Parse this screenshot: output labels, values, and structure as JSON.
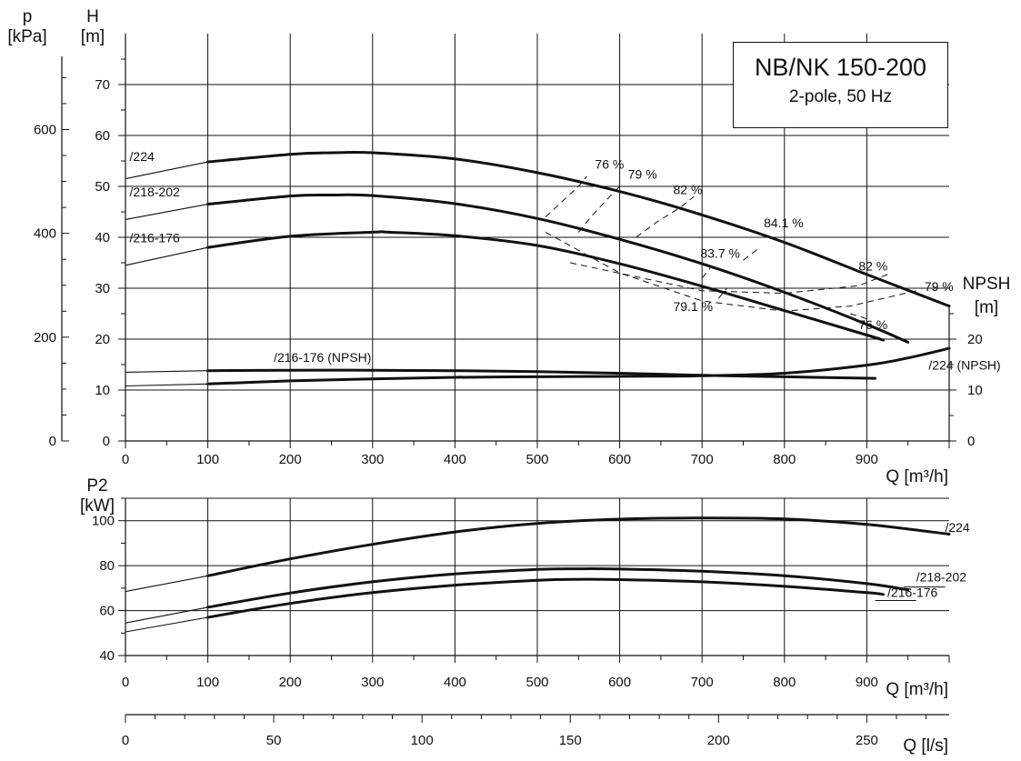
{
  "chart_data": [
    {
      "type": "line",
      "panel": "head",
      "title": "NB/NK 150-200",
      "subtitle": "2-pole, 50 Hz",
      "xlabel": "Q [m³/h]",
      "ylabel": "H\n[m]",
      "ylabel_secondary_left": "p\n[kPa]",
      "ylabel_right": "NPSH\n[m]",
      "xlim": [
        0,
        1000
      ],
      "ylim": [
        0,
        80
      ],
      "x_ticks": [
        0,
        100,
        200,
        300,
        400,
        500,
        600,
        700,
        800,
        900
      ],
      "y_ticks": [
        0,
        10,
        20,
        30,
        40,
        50,
        60,
        70
      ],
      "p_ticks": [
        0,
        200,
        400,
        600
      ],
      "npsh_ticks": [
        0,
        10,
        20
      ],
      "grid": true,
      "series": [
        {
          "name": "/224",
          "label_at": [
            5,
            55
          ],
          "x": [
            0,
            100,
            200,
            250,
            300,
            400,
            500,
            600,
            700,
            800,
            900,
            1000
          ],
          "y": [
            51.5,
            54.8,
            56.3,
            56.6,
            56.6,
            55.4,
            52.7,
            49,
            44.4,
            39,
            32.7,
            26.5
          ],
          "thin_until": 100
        },
        {
          "name": "/218-202",
          "label_at": [
            5,
            48
          ],
          "x": [
            0,
            100,
            200,
            250,
            300,
            400,
            500,
            600,
            700,
            800,
            900,
            950
          ],
          "y": [
            43.5,
            46.5,
            48.1,
            48.3,
            48.2,
            46.6,
            43.7,
            39.6,
            34.8,
            29.2,
            22.9,
            19.4
          ],
          "thin_until": 100
        },
        {
          "name": "/216-176",
          "label_at": [
            5,
            39
          ],
          "x": [
            0,
            100,
            200,
            300,
            320,
            400,
            500,
            600,
            700,
            800,
            900,
            920
          ],
          "y": [
            34.5,
            38,
            40.2,
            41,
            41,
            40.3,
            38.4,
            34.8,
            30.4,
            25.6,
            20.8,
            19.8
          ],
          "thin_until": 100
        },
        {
          "name": "/216-176 (NPSH)",
          "label_at": [
            180,
            15.5
          ],
          "x": [
            0,
            100,
            200,
            300,
            400,
            500,
            600,
            700,
            800,
            910
          ],
          "y": [
            13.5,
            13.8,
            13.9,
            13.9,
            13.8,
            13.6,
            13.3,
            12.9,
            12.6,
            12.3
          ],
          "thin_until": 100
        },
        {
          "name": "/224 (NPSH)",
          "label_at": [
            975,
            14
          ],
          "x": [
            0,
            100,
            200,
            300,
            400,
            500,
            600,
            700,
            800,
            900,
            950,
            1000
          ],
          "y": [
            10.8,
            11.2,
            11.8,
            12.2,
            12.5,
            12.6,
            12.7,
            12.8,
            13.3,
            14.9,
            16.3,
            18.2
          ],
          "thin_until": 100
        }
      ],
      "efficiency_contours": [
        {
          "label": "76 %",
          "label_at": [
            570,
            53.5
          ],
          "x": [
            510,
            530,
            550,
            560
          ],
          "y": [
            44,
            47,
            50,
            52
          ]
        },
        {
          "label": "79 %",
          "label_at": [
            610,
            51.5
          ],
          "x": [
            550,
            565,
            585,
            600
          ],
          "y": [
            41,
            44,
            47.5,
            50
          ]
        },
        {
          "label": "82 %",
          "label_at": [
            665,
            48.5
          ],
          "x": [
            620,
            645,
            675,
            690
          ],
          "y": [
            40,
            43,
            46,
            48
          ]
        },
        {
          "label": "84.1 %",
          "label_at": [
            775,
            42
          ],
          "x": [
            750,
            770
          ],
          "y": [
            35.5,
            38
          ]
        },
        {
          "label": "83.7 %",
          "label_at": [
            698,
            36
          ],
          "x": [
            700,
            710
          ],
          "y": [
            32,
            34
          ]
        },
        {
          "label": "79.1 %",
          "label_at": [
            665,
            25.5
          ],
          "x": [
            720,
            730
          ],
          "y": [
            28,
            30
          ]
        },
        {
          "label": "82 %",
          "label_at": [
            890,
            33.5
          ],
          "x": [
            540,
            700,
            800,
            890,
            930
          ],
          "y": [
            35,
            29.5,
            29,
            30.5,
            33
          ]
        },
        {
          "label": "79 %",
          "label_at": [
            970,
            29.5
          ],
          "x": [
            510,
            600,
            700,
            800,
            880,
            960
          ],
          "y": [
            41,
            33,
            27.5,
            25.5,
            26.5,
            29.5
          ]
        },
        {
          "label": "76 %",
          "label_at": [
            890,
            22
          ],
          "x": [
            880,
            900
          ],
          "y": [
            25,
            24
          ]
        }
      ]
    },
    {
      "type": "line",
      "panel": "power",
      "xlabel": "Q [m³/h]",
      "ylabel": "P2\n[kW]",
      "xlim": [
        0,
        1000
      ],
      "ylim": [
        40,
        110
      ],
      "x_ticks": [
        0,
        100,
        200,
        300,
        400,
        500,
        600,
        700,
        800,
        900
      ],
      "y_ticks": [
        40,
        60,
        80,
        100
      ],
      "grid": true,
      "series": [
        {
          "name": "/224",
          "label_at": [
            995,
            95
          ],
          "x": [
            0,
            100,
            200,
            300,
            400,
            500,
            600,
            700,
            800,
            900,
            1000
          ],
          "y": [
            68.5,
            75.5,
            83,
            89.5,
            95,
            98.8,
            100.7,
            101.2,
            100.8,
            98.4,
            94
          ],
          "thin_until": 100
        },
        {
          "name": "/218-202",
          "label_at": [
            960,
            73
          ],
          "x": [
            0,
            100,
            200,
            300,
            400,
            500,
            550,
            600,
            700,
            800,
            900,
            950
          ],
          "y": [
            54.5,
            61.5,
            67.8,
            72.8,
            76.3,
            78.3,
            78.6,
            78.5,
            77.5,
            75.5,
            72,
            69.3
          ],
          "thin_until": 100
        },
        {
          "name": "/216-176",
          "label_at": [
            925,
            66
          ],
          "x": [
            0,
            100,
            200,
            300,
            400,
            500,
            550,
            600,
            700,
            800,
            900,
            920
          ],
          "y": [
            50.5,
            57,
            63.2,
            68,
            71.3,
            73.5,
            73.9,
            73.8,
            72.8,
            70.8,
            68,
            67.2
          ],
          "thin_until": 100
        }
      ]
    },
    {
      "type": "axis",
      "panel": "flow-ls",
      "xlabel": "Q [l/s]",
      "xlim": [
        0,
        277.8
      ],
      "x_ticks": [
        0,
        50,
        100,
        150,
        200,
        250
      ]
    }
  ]
}
